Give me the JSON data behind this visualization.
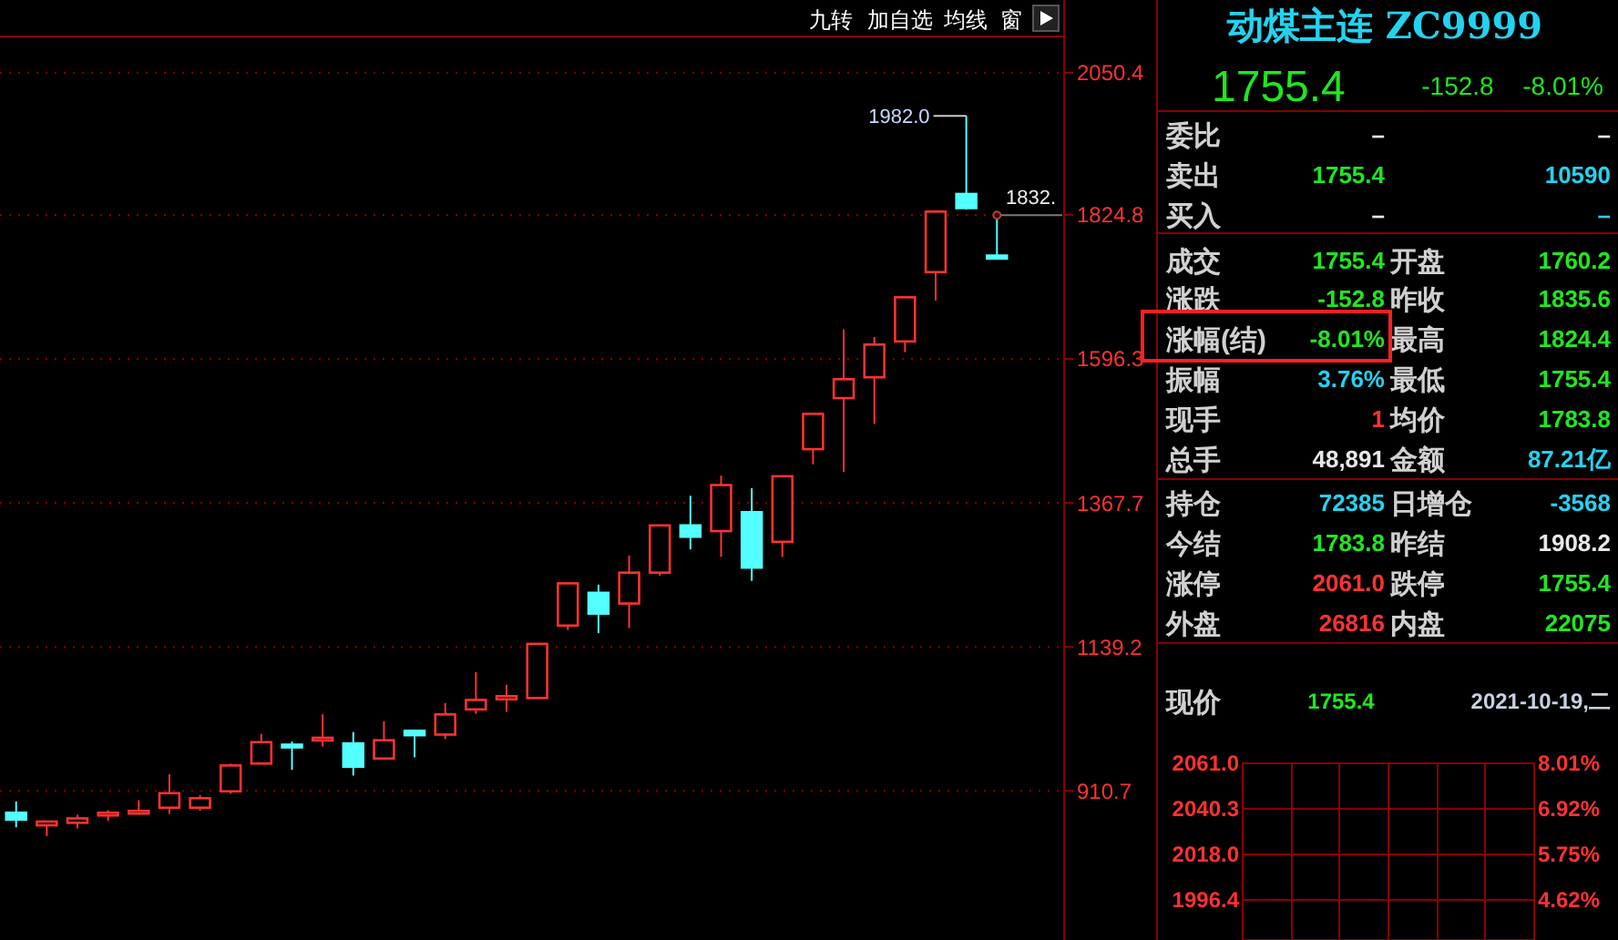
{
  "chart_data": [
    {
      "type": "candlestick",
      "categories": [
        null,
        null,
        null,
        null,
        null,
        null,
        null,
        null,
        null,
        null,
        null,
        null,
        null,
        null,
        null,
        null,
        null,
        null,
        null,
        null,
        null,
        null,
        null,
        null,
        null,
        null,
        null,
        null,
        null,
        null,
        null,
        null,
        null
      ],
      "ohlc": [
        [
          876,
          894,
          853,
          865
        ],
        [
          856,
          862,
          839,
          862
        ],
        [
          860,
          873,
          851,
          867
        ],
        [
          874,
          880,
          863,
          876
        ],
        [
          877,
          896,
          873,
          879
        ],
        [
          884,
          937,
          874,
          907
        ],
        [
          884,
          904,
          879,
          899
        ],
        [
          910,
          954,
          906,
          951
        ],
        [
          954,
          1001,
          954,
          988
        ],
        [
          984,
          989,
          944,
          982
        ],
        [
          993,
          1032,
          981,
          995
        ],
        [
          986,
          1004,
          935,
          949
        ],
        [
          962,
          1021,
          962,
          991
        ],
        [
          1006,
          1008,
          964,
          999
        ],
        [
          1000,
          1050,
          993,
          1032
        ],
        [
          1040,
          1099,
          1033,
          1055
        ],
        [
          1056,
          1079,
          1036,
          1061
        ],
        [
          1058,
          1144,
          1058,
          1144
        ],
        [
          1173,
          1240,
          1166,
          1240
        ],
        [
          1225,
          1238,
          1161,
          1192
        ],
        [
          1208,
          1284,
          1169,
          1257
        ],
        [
          1257,
          1332,
          1252,
          1332
        ],
        [
          1332,
          1379,
          1294,
          1314
        ],
        [
          1323,
          1411,
          1282,
          1396
        ],
        [
          1353,
          1391,
          1244,
          1265
        ],
        [
          1306,
          1410,
          1282,
          1410
        ],
        [
          1453,
          1509,
          1429,
          1509
        ],
        [
          1534,
          1643,
          1417,
          1564
        ],
        [
          1567,
          1631,
          1493,
          1619
        ],
        [
          1624,
          1694,
          1607,
          1694
        ],
        [
          1734,
          1830,
          1689,
          1830
        ],
        [
          1858,
          1982.0,
          1833,
          1835.6
        ],
        [
          1760.2,
          1824.4,
          1755.4,
          1755.4
        ]
      ],
      "colors": [
        "#54ffff",
        "#ff3232",
        "#ff3232",
        "#ff3232",
        "#ff3232",
        "#ff3232",
        "#ff3232",
        "#ff3232",
        "#ff3232",
        "#54ffff",
        "#ff3232",
        "#54ffff",
        "#ff3232",
        "#54ffff",
        "#ff3232",
        "#ff3232",
        "#ff3232",
        "#ff3232",
        "#ff3232",
        "#54ffff",
        "#ff3232",
        "#ff3232",
        "#54ffff",
        "#ff3232",
        "#54ffff",
        "#ff3232",
        "#ff3232",
        "#ff3232",
        "#ff3232",
        "#ff3232",
        "#ff3232",
        "#54ffff",
        "#54ffff"
      ],
      "ylim": [
        674,
        2108
      ],
      "yticks": [
        910.7,
        1139.2,
        1367.7,
        1596.3,
        1824.8,
        2050.4
      ],
      "grid": "y",
      "annotations": [
        "九转",
        "加自选",
        "均线",
        "窗",
        "1982.0",
        "1832."
      ]
    },
    {
      "type": "other",
      "title": "动煤主连 ZC9999",
      "annotations": [
        "1755.4",
        "-152.8",
        "-8.01%",
        "委比",
        "–",
        "–",
        "卖出",
        "1755.4",
        "10590",
        "买入",
        "–",
        "–",
        "成交",
        "1755.4",
        "开盘",
        "1760.2",
        "涨跌",
        "-152.8",
        "昨收",
        "1835.6",
        "涨幅(结)",
        "-8.01%",
        "最高",
        "1824.4",
        "振幅",
        "3.76%",
        "最低",
        "1755.4",
        "现手",
        "1",
        "均价",
        "1783.8",
        "总手",
        "48,891",
        "金额",
        "87.21亿",
        "持仓",
        "72385",
        "日增仓",
        "-3568",
        "今结",
        "1783.8",
        "昨结",
        "1908.2",
        "涨停",
        "2061.0",
        "跌停",
        "1755.4",
        "外盘",
        "26816",
        "内盘",
        "22075",
        "现价",
        "1755.4",
        "2021-10-19,二",
        "2061.0",
        "2040.3",
        "2018.0",
        "1996.4",
        "8.01%",
        "6.92%",
        "5.75%",
        "4.62%"
      ]
    }
  ]
}
